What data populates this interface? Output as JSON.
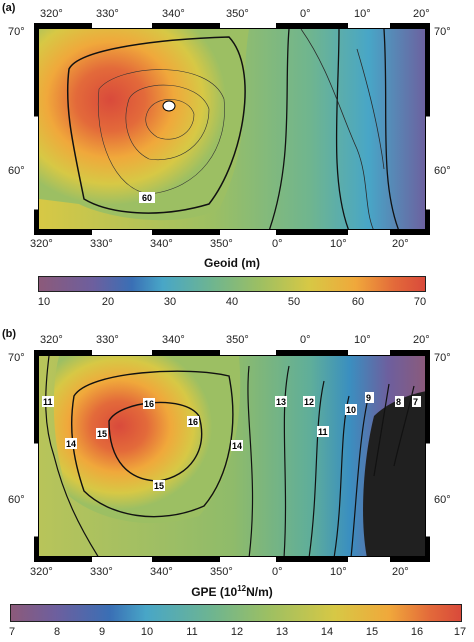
{
  "panels": [
    {
      "label": "(a)",
      "top_lon_labels": [
        "320°",
        "330°",
        "340°",
        "350°",
        "0°",
        "10°",
        "20°"
      ],
      "bottom_lon_labels": [
        "320°",
        "330°",
        "340°",
        "350°",
        "0°",
        "10°",
        "20°"
      ],
      "lat_labels": [
        "70°",
        "60°"
      ],
      "contour_labels": [
        "60"
      ],
      "colorbar": {
        "title": "Geoid (m)",
        "ticks": [
          "10",
          "20",
          "30",
          "40",
          "50",
          "60",
          "70"
        ]
      }
    },
    {
      "label": "(b)",
      "top_lon_labels": [
        "320°",
        "330°",
        "340°",
        "350°",
        "0°",
        "10°",
        "20°"
      ],
      "bottom_lon_labels": [
        "320°",
        "330°",
        "340°",
        "350°",
        "0°",
        "10°",
        "20°"
      ],
      "lat_labels": [
        "70°",
        "60°"
      ],
      "contour_labels": [
        "11",
        "14",
        "15",
        "16",
        "16",
        "15",
        "14",
        "13",
        "12",
        "11",
        "10",
        "9",
        "8",
        "7"
      ],
      "colorbar": {
        "title_main": "GPE (10",
        "title_sup": "12",
        "title_end": "N/m)",
        "ticks": [
          "7",
          "8",
          "9",
          "10",
          "11",
          "12",
          "13",
          "14",
          "15",
          "16",
          "17"
        ]
      }
    }
  ],
  "colors": {
    "high": "#d94a3b",
    "mid": "#9cbf63",
    "low": "#3a6fb5",
    "land": "#202020"
  }
}
